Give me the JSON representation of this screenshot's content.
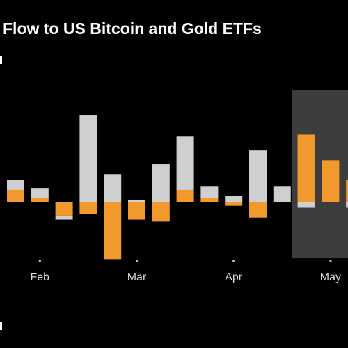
{
  "title": "Flow to US Bitcoin and Gold ETFs",
  "colors": {
    "background": "#000000",
    "gold_series": "#f2992e",
    "bitcoin_series": "#cfcfcf",
    "highlight_band": "#3d3d3d",
    "tick": "#bfbfbf",
    "text": "#ffffff"
  },
  "chart_data": {
    "type": "bar",
    "stacked": true,
    "title": "Flow to US Bitcoin and Gold ETFs",
    "x_tick_labels": [
      "Feb",
      "Mar",
      "Apr",
      "May"
    ],
    "x_tick_positions": [
      1.5,
      5.5,
      9.5,
      13.5
    ],
    "highlighted_range": [
      12,
      14
    ],
    "series": [
      {
        "color": "#cfcfcf",
        "values": [
          0.5,
          0.5,
          -0.2,
          4.4,
          1.4,
          0.1,
          1.9,
          2.7,
          0.6,
          0.3,
          2.6,
          0.8,
          -0.3,
          0,
          -0.3
        ]
      },
      {
        "color": "#f2992e",
        "values": [
          0.6,
          0.2,
          -0.7,
          -0.6,
          -2.9,
          -0.9,
          -1.0,
          0.6,
          0.2,
          -0.2,
          -0.8,
          0,
          3.4,
          2.1,
          1.1
        ]
      }
    ],
    "ylim": [
      -3.2,
      5.3
    ],
    "grid": false
  }
}
